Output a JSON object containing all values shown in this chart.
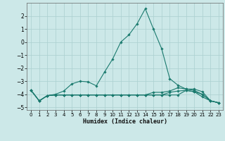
{
  "xlabel": "Humidex (Indice chaleur)",
  "background_color": "#cce8e8",
  "grid_color": "#aacfcf",
  "line_color": "#1a7a6e",
  "xlim": [
    -0.5,
    23.5
  ],
  "ylim": [
    -5.2,
    3.0
  ],
  "yticks": [
    -5,
    -4,
    -3,
    -2,
    -1,
    0,
    1,
    2
  ],
  "xticks": [
    0,
    1,
    2,
    3,
    4,
    5,
    6,
    7,
    8,
    9,
    10,
    11,
    12,
    13,
    14,
    15,
    16,
    17,
    18,
    19,
    20,
    21,
    22,
    23
  ],
  "line1_x": [
    0,
    1,
    2,
    3,
    4,
    5,
    6,
    7,
    8,
    9,
    10,
    11,
    12,
    13,
    14,
    15,
    16,
    17,
    18,
    19,
    20,
    21,
    22,
    23
  ],
  "line1_y": [
    -3.7,
    -4.5,
    -4.1,
    -4.05,
    -4.05,
    -4.05,
    -4.05,
    -4.05,
    -4.05,
    -4.05,
    -4.05,
    -4.05,
    -4.05,
    -4.05,
    -4.05,
    -4.05,
    -4.05,
    -4.05,
    -4.05,
    -3.7,
    -3.8,
    -4.2,
    -4.5,
    -4.65
  ],
  "line2_x": [
    0,
    1,
    2,
    3,
    4,
    5,
    6,
    7,
    8,
    9,
    10,
    11,
    12,
    13,
    14,
    15,
    16,
    17,
    18,
    19,
    20,
    21,
    22,
    23
  ],
  "line2_y": [
    -3.7,
    -4.5,
    -4.1,
    -4.0,
    -3.75,
    -3.2,
    -3.0,
    -3.05,
    -3.35,
    -2.3,
    -1.3,
    0.0,
    0.55,
    1.4,
    2.55,
    1.0,
    -0.5,
    -2.8,
    -3.3,
    -3.6,
    -3.6,
    -3.8,
    -4.5,
    -4.65
  ],
  "line3_x": [
    0,
    1,
    2,
    3,
    4,
    5,
    6,
    7,
    8,
    9,
    10,
    11,
    12,
    13,
    14,
    15,
    16,
    17,
    18,
    19,
    20,
    21,
    22,
    23
  ],
  "line3_y": [
    -3.7,
    -4.5,
    -4.1,
    -4.05,
    -4.05,
    -4.05,
    -4.05,
    -4.05,
    -4.05,
    -4.05,
    -4.05,
    -4.05,
    -4.05,
    -4.05,
    -4.05,
    -3.85,
    -3.85,
    -3.75,
    -3.5,
    -3.6,
    -3.7,
    -4.0,
    -4.5,
    -4.65
  ],
  "line4_x": [
    0,
    1,
    2,
    3,
    4,
    5,
    6,
    7,
    8,
    9,
    10,
    11,
    12,
    13,
    14,
    15,
    16,
    17,
    18,
    19,
    20,
    21,
    22,
    23
  ],
  "line4_y": [
    -3.7,
    -4.5,
    -4.1,
    -4.05,
    -4.05,
    -4.05,
    -4.05,
    -4.05,
    -4.05,
    -4.05,
    -4.05,
    -4.05,
    -4.05,
    -4.05,
    -4.05,
    -4.05,
    -4.05,
    -3.85,
    -3.75,
    -3.7,
    -3.8,
    -4.0,
    -4.5,
    -4.65
  ]
}
